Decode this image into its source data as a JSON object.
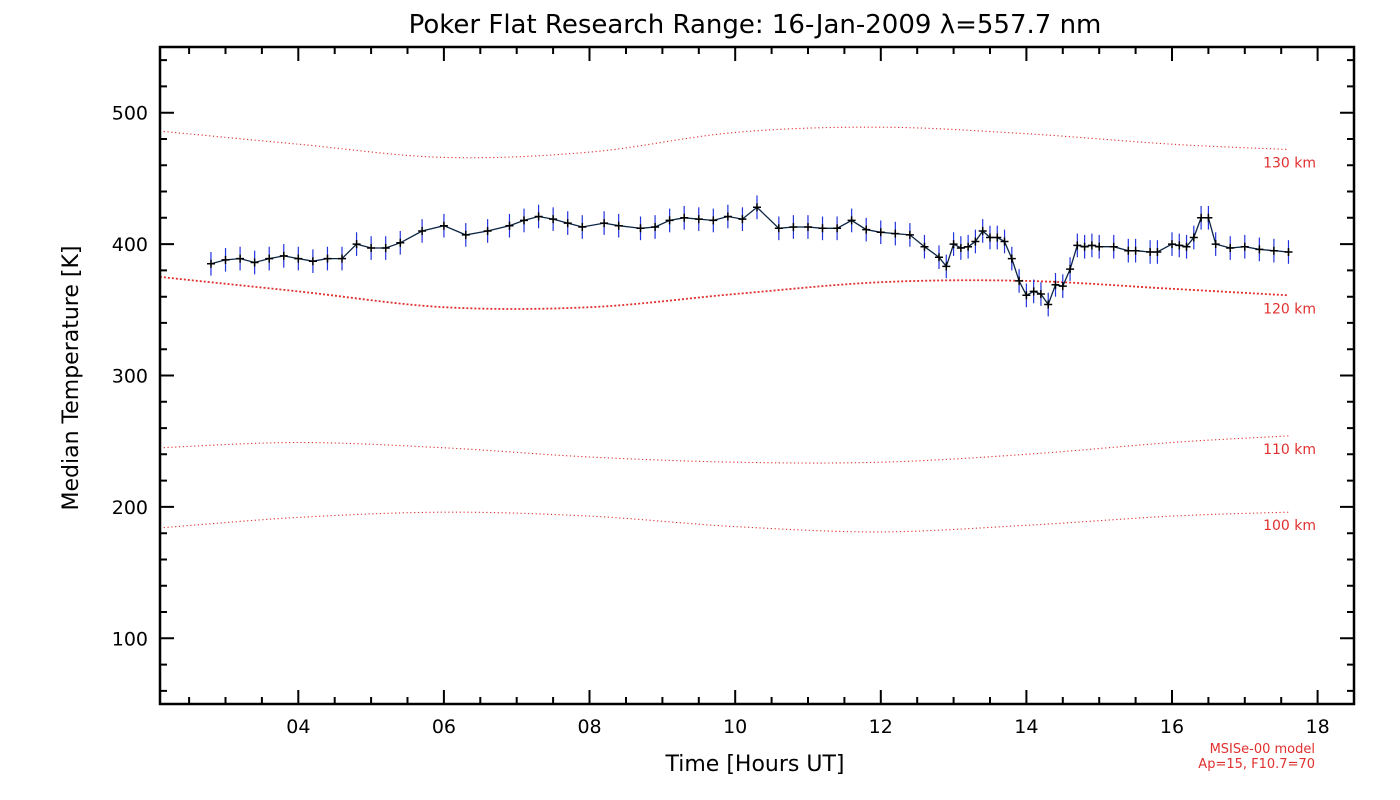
{
  "chart_data": {
    "type": "line",
    "title": "Poker Flat Research Range: 16-Jan-2009 λ=557.7 nm",
    "xlabel": "Time [Hours UT]",
    "ylabel": "Median Temperature [K]",
    "xlim": [
      2.1,
      18.5
    ],
    "ylim": [
      50,
      550
    ],
    "xticks": [
      4,
      6,
      8,
      10,
      12,
      14,
      16,
      18
    ],
    "xtick_labels": [
      "04",
      "06",
      "08",
      "10",
      "12",
      "14",
      "16",
      "18"
    ],
    "yticks": [
      100,
      200,
      300,
      400,
      500
    ],
    "ytick_labels": [
      "100",
      "200",
      "300",
      "400",
      "500"
    ],
    "colors": {
      "measured": "#0b2545",
      "error_bars": "#2233dd",
      "model": "#e0302f",
      "frame": "#000000"
    },
    "measured": {
      "name": "Median temperature",
      "x": [
        2.8,
        3.0,
        3.2,
        3.4,
        3.6,
        3.8,
        4.0,
        4.2,
        4.4,
        4.6,
        4.8,
        5.0,
        5.2,
        5.4,
        5.7,
        6.0,
        6.3,
        6.6,
        6.9,
        7.1,
        7.3,
        7.5,
        7.7,
        7.9,
        8.2,
        8.4,
        8.7,
        8.9,
        9.1,
        9.3,
        9.5,
        9.7,
        9.9,
        10.1,
        10.3,
        10.6,
        10.8,
        11.0,
        11.2,
        11.4,
        11.6,
        11.8,
        12.0,
        12.2,
        12.4,
        12.6,
        12.8,
        12.9,
        13.0,
        13.1,
        13.2,
        13.3,
        13.4,
        13.5,
        13.6,
        13.7,
        13.8,
        13.9,
        14.0,
        14.1,
        14.2,
        14.3,
        14.4,
        14.5,
        14.6,
        14.7,
        14.8,
        14.9,
        15.0,
        15.2,
        15.4,
        15.5,
        15.7,
        15.8,
        16.0,
        16.1,
        16.2,
        16.3,
        16.4,
        16.5,
        16.6,
        16.8,
        17.0,
        17.2,
        17.4,
        17.6
      ],
      "y": [
        385,
        388,
        389,
        386,
        389,
        391,
        389,
        387,
        389,
        389,
        400,
        397,
        397,
        401,
        410,
        414,
        407,
        410,
        414,
        418,
        421,
        419,
        416,
        413,
        416,
        414,
        412,
        413,
        418,
        420,
        419,
        418,
        421,
        419,
        428,
        412,
        413,
        413,
        412,
        412,
        418,
        411,
        409,
        408,
        407,
        398,
        390,
        383,
        400,
        397,
        398,
        402,
        410,
        405,
        405,
        402,
        389,
        372,
        361,
        364,
        362,
        354,
        369,
        368,
        381,
        399,
        398,
        399,
        398,
        398,
        395,
        395,
        394,
        394,
        400,
        399,
        398,
        405,
        420,
        420,
        400,
        397,
        398,
        396,
        395,
        394
      ],
      "err": [
        9,
        9,
        9,
        9,
        9,
        9,
        9,
        9,
        9,
        9,
        9,
        9,
        9,
        9,
        9,
        9,
        9,
        9,
        9,
        9,
        9,
        9,
        9,
        9,
        9,
        9,
        9,
        9,
        9,
        9,
        9,
        9,
        9,
        9,
        9,
        9,
        9,
        9,
        9,
        9,
        9,
        9,
        9,
        9,
        9,
        9,
        9,
        9,
        9,
        9,
        9,
        9,
        9,
        9,
        9,
        9,
        9,
        9,
        9,
        9,
        9,
        9,
        9,
        9,
        9,
        9,
        9,
        9,
        9,
        9,
        9,
        9,
        9,
        9,
        9,
        9,
        9,
        9,
        9,
        9,
        9,
        9,
        9,
        9,
        9,
        9
      ]
    },
    "model": [
      {
        "name": "130 km",
        "label": "130 km",
        "x": [
          2.1,
          4.0,
          6.0,
          8.0,
          10.0,
          12.0,
          14.0,
          16.0,
          17.6
        ],
        "y": [
          486,
          476,
          466,
          470,
          485,
          489,
          484,
          476,
          472
        ]
      },
      {
        "name": "120 km",
        "label": "120 km",
        "x": [
          2.1,
          4.0,
          6.0,
          8.0,
          10.0,
          12.0,
          14.0,
          16.0,
          17.6
        ],
        "y": [
          375,
          364,
          352,
          352,
          362,
          371,
          372,
          366,
          361
        ]
      },
      {
        "name": "110 km",
        "label": "110 km",
        "x": [
          2.1,
          4.0,
          6.0,
          8.0,
          10.0,
          12.0,
          14.0,
          16.0,
          17.6
        ],
        "y": [
          245,
          249,
          245,
          238,
          234,
          234,
          240,
          249,
          254
        ]
      },
      {
        "name": "100 km",
        "label": "100 km",
        "x": [
          2.1,
          4.0,
          6.0,
          8.0,
          10.0,
          12.0,
          14.0,
          16.0,
          17.6
        ],
        "y": [
          184,
          192,
          196,
          193,
          185,
          181,
          186,
          193,
          196
        ]
      }
    ],
    "model_note": [
      "MSISe-00 model",
      "Ap=15, F10.7=70"
    ]
  }
}
